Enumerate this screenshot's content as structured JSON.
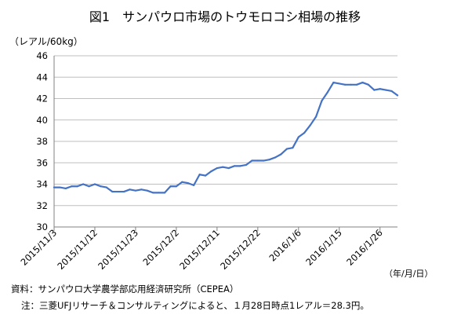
{
  "title": "図1　サンパウロ市場のトウモロコシ相場の推移",
  "unit_label": "（レアル/60kg）",
  "date_unit": "（年/月/日）",
  "source": "資料：サンパウロ大学農学部応用経済研究所（CEPEA）",
  "note": "注：三菱UFJリサーチ＆コンサルティングによると、１月28日時点1レアル＝28.3円。",
  "colors": {
    "line": "#4472C4",
    "grid": "#bfbfbf",
    "axis": "#808080"
  },
  "chart_data": {
    "type": "line",
    "title": "図1　サンパウロ市場のトウモロコシ相場の推移",
    "ylabel": "（レアル/60kg）",
    "xlabel": "（年/月/日）",
    "ylim": [
      30,
      46
    ],
    "yticks": [
      30,
      32,
      34,
      36,
      38,
      40,
      42,
      44,
      46
    ],
    "grid": true,
    "legend": "none",
    "tick_labels": [
      "2015/11/3",
      "2015/11/12",
      "2015/11/23",
      "2015/12/2",
      "2015/12/11",
      "2015/12/22",
      "2016/1/6",
      "2016/1/15",
      "2016/1/26"
    ],
    "tick_positions": [
      0,
      7,
      14,
      21,
      28,
      35,
      42,
      49,
      56
    ],
    "series": [
      {
        "values": [
          33.7,
          33.7,
          33.6,
          33.8,
          33.8,
          34.0,
          33.8,
          34.0,
          33.8,
          33.7,
          33.3,
          33.3,
          33.3,
          33.5,
          33.4,
          33.5,
          33.4,
          33.2,
          33.2,
          33.2,
          33.8,
          33.8,
          34.2,
          34.1,
          33.9,
          34.9,
          34.8,
          35.2,
          35.5,
          35.6,
          35.5,
          35.7,
          35.7,
          35.8,
          36.2,
          36.2,
          36.2,
          36.3,
          36.5,
          36.8,
          37.3,
          37.4,
          38.4,
          38.8,
          39.5,
          40.3,
          41.8,
          42.6,
          43.5,
          43.4,
          43.3,
          43.3,
          43.3,
          43.5,
          43.3,
          42.8,
          42.9,
          42.8,
          42.7,
          42.3
        ]
      }
    ]
  }
}
